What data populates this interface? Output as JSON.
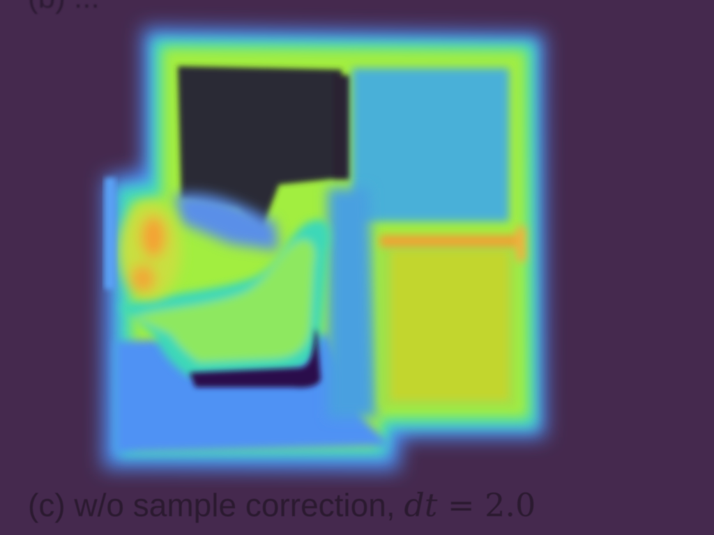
{
  "figure": {
    "caption_text": "(c) w/o sample correction, ",
    "caption_math_var": "dt",
    "caption_math_op": " = ",
    "caption_math_value": "2.0"
  },
  "colors": {
    "background": "#45294e",
    "dark_region": "#2c2a35",
    "deep_purple": "#2a0a4a",
    "blue": "#4f8ff6",
    "cyan": "#40d8c8",
    "lime": "#a6f23c",
    "yellow_green": "#c2d630",
    "orange": "#f5a030",
    "sky": "#48b0d8"
  }
}
